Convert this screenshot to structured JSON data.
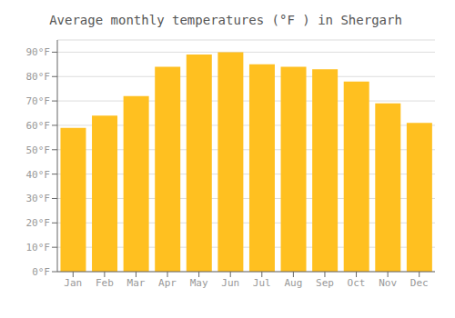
{
  "chart_data": {
    "type": "bar",
    "title": "Average monthly temperatures (°F ) in Shergarh",
    "categories": [
      "Jan",
      "Feb",
      "Mar",
      "Apr",
      "May",
      "Jun",
      "Jul",
      "Aug",
      "Sep",
      "Oct",
      "Nov",
      "Dec"
    ],
    "values": [
      59,
      64,
      72,
      84,
      89,
      90,
      85,
      84,
      83,
      78,
      69,
      61
    ],
    "color": "#FFC020",
    "ylim": [
      0,
      95
    ],
    "yticks": [
      {
        "value": 0,
        "label": "0°F"
      },
      {
        "value": 10,
        "label": "10°F"
      },
      {
        "value": 20,
        "label": "20°F"
      },
      {
        "value": 30,
        "label": "30°F"
      },
      {
        "value": 40,
        "label": "40°F"
      },
      {
        "value": 50,
        "label": "50°F"
      },
      {
        "value": 60,
        "label": "60°F"
      },
      {
        "value": 70,
        "label": "70°F"
      },
      {
        "value": 80,
        "label": "80°F"
      },
      {
        "value": 90,
        "label": "90°F"
      }
    ],
    "grid": true
  }
}
